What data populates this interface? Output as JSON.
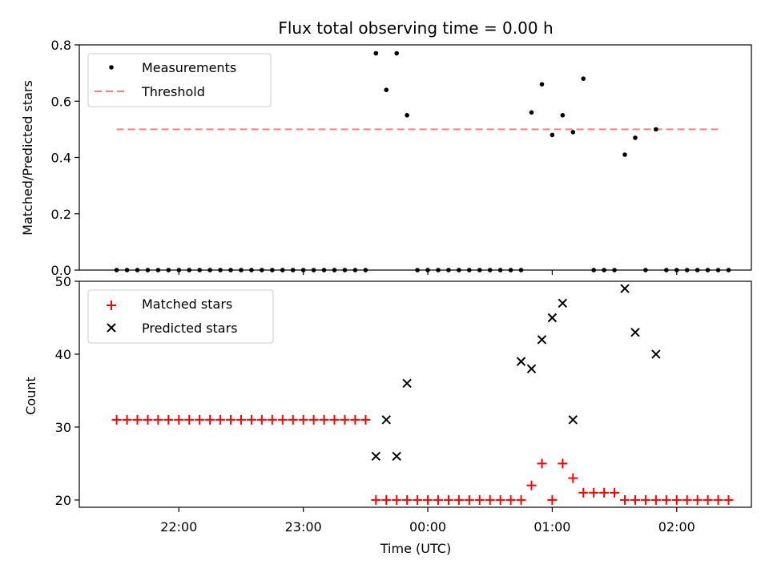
{
  "chart_data": [
    {
      "type": "scatter",
      "title": "Flux total observing time = 0.00 h",
      "ylabel": "Matched/Predicted stars",
      "ylim": [
        0,
        0.8
      ],
      "yticks": [
        "0.0",
        "0.2",
        "0.4",
        "0.6",
        "0.8"
      ],
      "threshold": 0.5,
      "legend": {
        "placement": "upper-left",
        "entries": [
          "Measurements",
          "Threshold"
        ]
      },
      "colors": {
        "measurements": "#000000",
        "threshold": "#ff7f7f"
      },
      "series": [
        {
          "name": "Measurements",
          "x": [
            "21:30",
            "21:35",
            "21:40",
            "21:45",
            "21:50",
            "21:55",
            "22:00",
            "22:05",
            "22:10",
            "22:15",
            "22:20",
            "22:25",
            "22:30",
            "22:35",
            "22:40",
            "22:45",
            "22:50",
            "22:55",
            "23:00",
            "23:05",
            "23:10",
            "23:15",
            "23:20",
            "23:25",
            "23:30",
            "23:35",
            "23:40",
            "23:45",
            "23:50",
            "23:55",
            "00:00",
            "00:05",
            "00:10",
            "00:15",
            "00:20",
            "00:25",
            "00:30",
            "00:35",
            "00:40",
            "00:45",
            "00:50",
            "00:55",
            "01:00",
            "01:05",
            "01:10",
            "01:15",
            "01:20",
            "01:25",
            "01:30",
            "01:35",
            "01:40",
            "01:45",
            "01:50",
            "01:55",
            "02:00",
            "02:05",
            "02:10",
            "02:15",
            "02:20",
            "02:25"
          ],
          "values": [
            0,
            0,
            0,
            0,
            0,
            0,
            0,
            0,
            0,
            0,
            0,
            0,
            0,
            0,
            0,
            0,
            0,
            0,
            0,
            0,
            0,
            0,
            0,
            0,
            0,
            0.77,
            0.64,
            0.77,
            0.55,
            0,
            0,
            0,
            0,
            0,
            0,
            0,
            0,
            0,
            0,
            0,
            0.56,
            0.66,
            0.48,
            0.55,
            0.49,
            0.68,
            0,
            0,
            0,
            0.41,
            0.47,
            0,
            0.5,
            0,
            0,
            0,
            0,
            0,
            0,
            0
          ]
        }
      ],
      "threshold_x_range": [
        "21:30",
        "02:20"
      ]
    },
    {
      "type": "scatter",
      "xlabel": "Time (UTC)",
      "ylabel": "Count",
      "ylim": [
        19,
        50
      ],
      "yticks": [
        "20",
        "30",
        "40",
        "50"
      ],
      "xticks": [
        "22:00",
        "23:00",
        "00:00",
        "01:00",
        "02:00"
      ],
      "xlim": [
        "21:12",
        "02:36"
      ],
      "legend": {
        "placement": "upper-left",
        "entries": [
          "Matched stars",
          "Predicted stars"
        ]
      },
      "colors": {
        "matched": "#ff0000",
        "predicted": "#000000"
      },
      "series": [
        {
          "name": "Matched stars",
          "x": [
            "21:30",
            "21:35",
            "21:40",
            "21:45",
            "21:50",
            "21:55",
            "22:00",
            "22:05",
            "22:10",
            "22:15",
            "22:20",
            "22:25",
            "22:30",
            "22:35",
            "22:40",
            "22:45",
            "22:50",
            "22:55",
            "23:00",
            "23:05",
            "23:10",
            "23:15",
            "23:20",
            "23:25",
            "23:30",
            "23:35",
            "23:40",
            "23:45",
            "23:50",
            "23:55",
            "00:00",
            "00:05",
            "00:10",
            "00:15",
            "00:20",
            "00:25",
            "00:30",
            "00:35",
            "00:40",
            "00:45",
            "00:50",
            "00:55",
            "01:00",
            "01:05",
            "01:10",
            "01:15",
            "01:20",
            "01:25",
            "01:30",
            "01:35",
            "01:40",
            "01:45",
            "01:50",
            "01:55",
            "02:00",
            "02:05",
            "02:10",
            "02:15",
            "02:20",
            "02:25"
          ],
          "values": [
            31,
            31,
            31,
            31,
            31,
            31,
            31,
            31,
            31,
            31,
            31,
            31,
            31,
            31,
            31,
            31,
            31,
            31,
            31,
            31,
            31,
            31,
            31,
            31,
            31,
            20,
            20,
            20,
            20,
            20,
            20,
            20,
            20,
            20,
            20,
            20,
            20,
            20,
            20,
            20,
            22,
            25,
            20,
            25,
            23,
            21,
            21,
            21,
            21,
            20,
            20,
            20,
            20,
            20,
            20,
            20,
            20,
            20,
            20,
            20
          ]
        },
        {
          "name": "Predicted stars",
          "x": [
            "23:35",
            "23:40",
            "23:45",
            "23:50",
            "00:45",
            "00:50",
            "00:55",
            "01:00",
            "01:05",
            "01:10",
            "01:35",
            "01:40",
            "01:50"
          ],
          "values": [
            26,
            31,
            26,
            36,
            39,
            38,
            42,
            45,
            47,
            31,
            49,
            43,
            40
          ]
        }
      ]
    }
  ]
}
